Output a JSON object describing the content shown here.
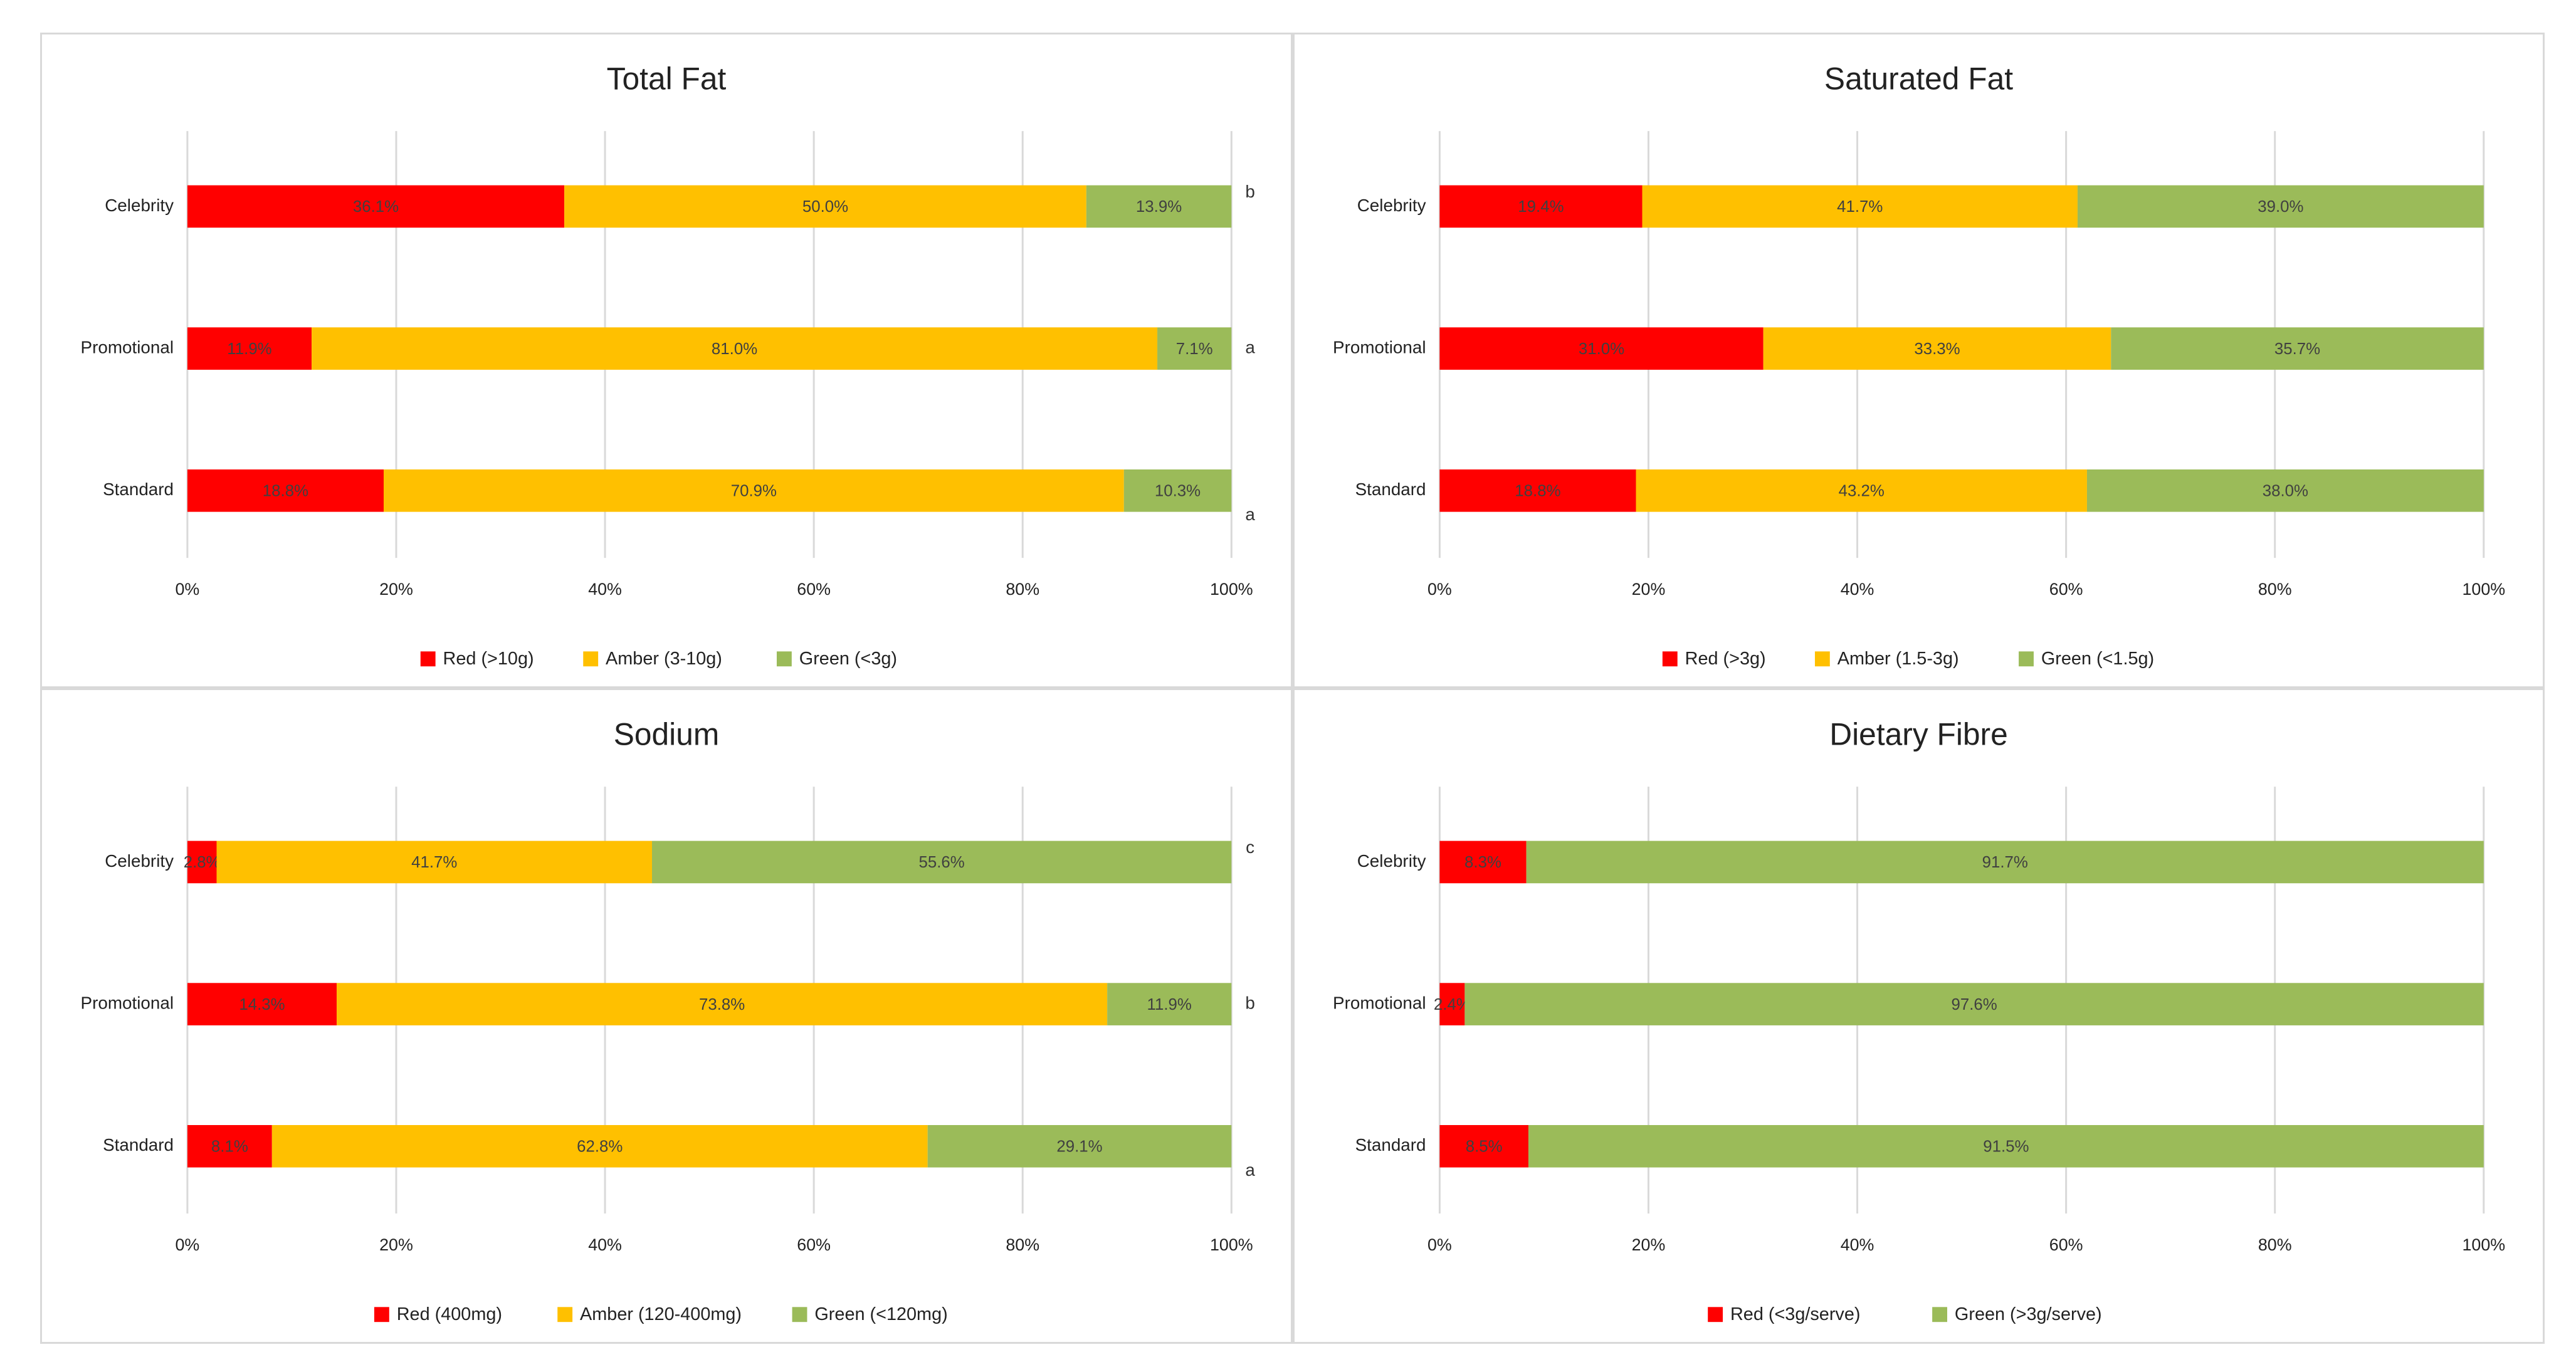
{
  "colors": {
    "red": "#FF0000",
    "amber": "#FFC000",
    "green": "#9BBB59",
    "grid": "#D9D9D9",
    "border": "#D9D9D9"
  },
  "chart_data": [
    {
      "type": "bar",
      "orientation": "horizontal",
      "stacked": true,
      "title": "Total Fat",
      "categories": [
        "Celebrity",
        "Promotional",
        "Standard"
      ],
      "series": [
        {
          "name": "Red (>10g)",
          "color": "red",
          "values": [
            36.1,
            11.9,
            18.8
          ],
          "labels": [
            "36.1%",
            "11.9%",
            "18.8%"
          ]
        },
        {
          "name": "Amber (3-10g)",
          "color": "amber",
          "values": [
            50.0,
            81.0,
            70.9
          ],
          "labels": [
            "50.0%",
            "81.0%",
            "70.9%"
          ]
        },
        {
          "name": "Green (<3g)",
          "color": "green",
          "values": [
            13.9,
            7.1,
            10.3
          ],
          "labels": [
            "13.9%",
            "7.1%",
            "10.3%"
          ]
        }
      ],
      "significance": [
        "b",
        "a",
        "a"
      ],
      "xticks": [
        "0%",
        "20%",
        "40%",
        "60%",
        "80%",
        "100%"
      ],
      "xlim": [
        0,
        100
      ],
      "grid": true,
      "legend": "bottom"
    },
    {
      "type": "bar",
      "orientation": "horizontal",
      "stacked": true,
      "title": "Saturated Fat",
      "categories": [
        "Celebrity",
        "Promotional",
        "Standard"
      ],
      "series": [
        {
          "name": "Red (>3g)",
          "color": "red",
          "values": [
            19.4,
            31.0,
            18.8
          ],
          "labels": [
            "19.4%",
            "31.0%",
            "18.8%"
          ]
        },
        {
          "name": "Amber (1.5-3g)",
          "color": "amber",
          "values": [
            41.7,
            33.3,
            43.2
          ],
          "labels": [
            "41.7%",
            "33.3%",
            "43.2%"
          ]
        },
        {
          "name": "Green (<1.5g)",
          "color": "green",
          "values": [
            39.0,
            35.7,
            38.0
          ],
          "labels": [
            "39.0%",
            "35.7%",
            "38.0%"
          ]
        }
      ],
      "significance": [
        "",
        "",
        ""
      ],
      "xticks": [
        "0%",
        "20%",
        "40%",
        "60%",
        "80%",
        "100%"
      ],
      "xlim": [
        0,
        100
      ],
      "grid": true,
      "legend": "bottom"
    },
    {
      "type": "bar",
      "orientation": "horizontal",
      "stacked": true,
      "title": "Sodium",
      "categories": [
        "Celebrity",
        "Promotional",
        "Standard"
      ],
      "series": [
        {
          "name": "Red  (400mg)",
          "color": "red",
          "values": [
            2.8,
            14.3,
            8.1
          ],
          "labels": [
            "2.8%",
            "14.3%",
            "8.1%"
          ]
        },
        {
          "name": "Amber (120-400mg)",
          "color": "amber",
          "values": [
            41.7,
            73.8,
            62.8
          ],
          "labels": [
            "41.7%",
            "73.8%",
            "62.8%"
          ]
        },
        {
          "name": "Green (<120mg)",
          "color": "green",
          "values": [
            55.6,
            11.9,
            29.1
          ],
          "labels": [
            "55.6%",
            "11.9%",
            "29.1%"
          ]
        }
      ],
      "significance": [
        "c",
        "b",
        "a"
      ],
      "xticks": [
        "0%",
        "20%",
        "40%",
        "60%",
        "80%",
        "100%"
      ],
      "xlim": [
        0,
        100
      ],
      "grid": true,
      "legend": "bottom"
    },
    {
      "type": "bar",
      "orientation": "horizontal",
      "stacked": true,
      "title": "Dietary Fibre",
      "categories": [
        "Celebrity",
        "Promotional",
        "Standard"
      ],
      "series": [
        {
          "name": "Red  (<3g/serve)",
          "color": "red",
          "values": [
            8.3,
            2.4,
            8.5
          ],
          "labels": [
            "8.3%",
            "2.4%",
            "8.5%"
          ]
        },
        {
          "name": "Green (>3g/serve)",
          "color": "green",
          "values": [
            91.7,
            97.6,
            91.5
          ],
          "labels": [
            "91.7%",
            "97.6%",
            "91.5%"
          ]
        }
      ],
      "significance": [
        "",
        "",
        ""
      ],
      "xticks": [
        "0%",
        "20%",
        "40%",
        "60%",
        "80%",
        "100%"
      ],
      "xlim": [
        0,
        100
      ],
      "grid": true,
      "legend": "bottom"
    }
  ]
}
